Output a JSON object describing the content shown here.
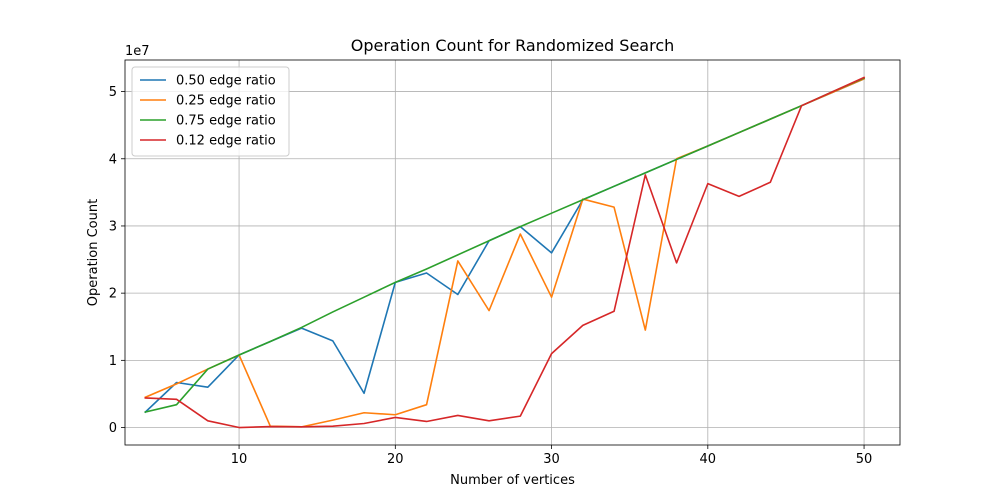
{
  "chart_data": {
    "type": "line",
    "title": "Operation Count for Randomized Search",
    "xlabel": "Number of vertices",
    "ylabel": "Operation Count",
    "y_offset_text": "1e7",
    "y_scale_factor": 10000000,
    "xlim": [
      2.7,
      52.3
    ],
    "ylim": [
      -2600000,
      54700000
    ],
    "x_ticks": [
      10,
      20,
      30,
      40,
      50
    ],
    "x_tick_labels": [
      "10",
      "20",
      "30",
      "40",
      "50"
    ],
    "y_ticks": [
      0,
      10000000,
      20000000,
      30000000,
      40000000,
      50000000
    ],
    "y_tick_labels": [
      "0",
      "1",
      "2",
      "3",
      "4",
      "5"
    ],
    "grid": true,
    "legend_position": "upper-left",
    "x": [
      4,
      6,
      8,
      10,
      12,
      14,
      16,
      18,
      20,
      22,
      24,
      26,
      28,
      30,
      32,
      34,
      36,
      38,
      40,
      42,
      44,
      46,
      48,
      50
    ],
    "series": [
      {
        "name": "0.50 edge ratio",
        "color": "#1f77b4",
        "values": [
          2300000,
          6700000,
          6000000,
          10800000,
          12800000,
          14800000,
          12900000,
          5100000,
          21600000,
          23000000,
          19800000,
          27800000,
          29900000,
          26000000,
          33900000,
          35900000,
          37900000,
          39900000,
          41900000,
          43900000,
          45900000,
          47900000,
          49900000,
          51900000
        ]
      },
      {
        "name": "0.25 edge ratio",
        "color": "#ff7f0e",
        "values": [
          4500000,
          6500000,
          8700000,
          10800000,
          200000,
          100000,
          1100000,
          2200000,
          1900000,
          3400000,
          24800000,
          17400000,
          28800000,
          19400000,
          34000000,
          32800000,
          14500000,
          40000000,
          41900000,
          43900000,
          45900000,
          47900000,
          49900000,
          51900000
        ]
      },
      {
        "name": "0.75 edge ratio",
        "color": "#2ca02c",
        "values": [
          2300000,
          3400000,
          8700000,
          10800000,
          12800000,
          14900000,
          17200000,
          19400000,
          21600000,
          23600000,
          25700000,
          27800000,
          29900000,
          31900000,
          33900000,
          35900000,
          37900000,
          39900000,
          41900000,
          43900000,
          45900000,
          47900000,
          50000000,
          52000000
        ]
      },
      {
        "name": "0.12 edge ratio",
        "color": "#d62728",
        "values": [
          4400000,
          4200000,
          1000000,
          0,
          150000,
          100000,
          200000,
          600000,
          1500000,
          900000,
          1800000,
          1000000,
          1700000,
          11000000,
          15200000,
          17300000,
          37600000,
          24500000,
          36300000,
          34400000,
          36500000,
          47900000,
          50000000,
          52100000
        ]
      }
    ]
  }
}
